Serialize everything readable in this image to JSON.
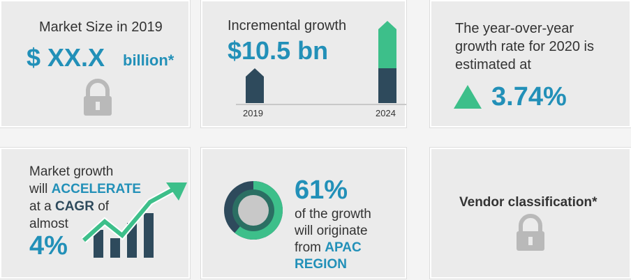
{
  "panels": [
    {
      "title": "Market Size in 2019",
      "value": "$ XX.X",
      "unit": "billion*"
    },
    {
      "title": "Incremental growth",
      "value": "$10.5 bn",
      "start_year": "2019",
      "end_year": "2024"
    },
    {
      "lines": [
        "The year-over-year",
        "growth rate for 2020 is",
        "estimated at"
      ],
      "value": "3.74%"
    },
    {
      "line1": "Market growth",
      "line2_pre": "will",
      "line2_em": "ACCELERATE",
      "line3_pre": "at a",
      "line3_em": "CAGR",
      "line3_post": "of",
      "line4": "almost",
      "value": "4%"
    },
    {
      "share": {
        "value": 61,
        "label": "61%"
      },
      "line1": "of the growth",
      "line2": "will originate",
      "line3_pre": "from",
      "line3_em": "APAC",
      "line4": "REGION"
    },
    {
      "title": "Vendor classification*"
    }
  ]
}
